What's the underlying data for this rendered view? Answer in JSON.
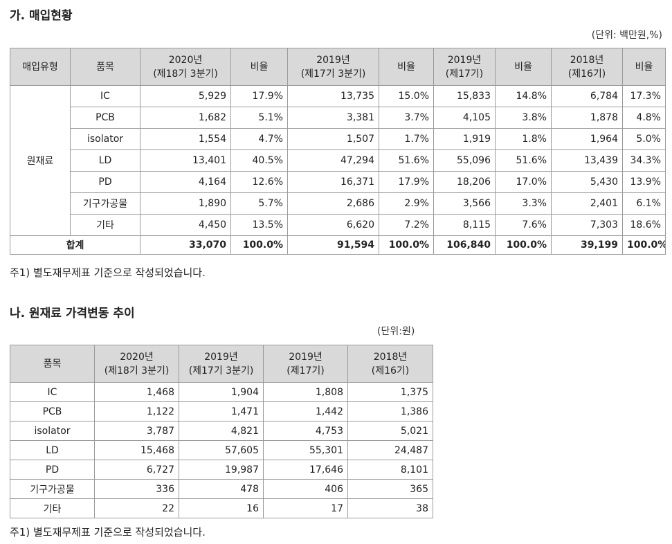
{
  "section1": {
    "title": "가. 매입현황",
    "unit": "(단위: 백만원,%)",
    "headers": [
      {
        "line1": "매입유형",
        "line2": ""
      },
      {
        "line1": "품목",
        "line2": ""
      },
      {
        "line1": "2020년",
        "line2": "(제18기 3분기)"
      },
      {
        "line1": "비율",
        "line2": ""
      },
      {
        "line1": "2019년",
        "line2": "(제17기 3분기)"
      },
      {
        "line1": "비율",
        "line2": ""
      },
      {
        "line1": "2019년",
        "line2": "(제17기)"
      },
      {
        "line1": "비율",
        "line2": ""
      },
      {
        "line1": "2018년",
        "line2": "(제16기)"
      },
      {
        "line1": "비율",
        "line2": ""
      }
    ],
    "group_label": "원재료",
    "rows": [
      {
        "item": "IC",
        "v": [
          "5,929",
          "17.9%",
          "13,735",
          "15.0%",
          "15,833",
          "14.8%",
          "6,784",
          "17.3%"
        ]
      },
      {
        "item": "PCB",
        "v": [
          "1,682",
          "5.1%",
          "3,381",
          "3.7%",
          "4,105",
          "3.8%",
          "1,878",
          "4.8%"
        ]
      },
      {
        "item": "isolator",
        "v": [
          "1,554",
          "4.7%",
          "1,507",
          "1.7%",
          "1,919",
          "1.8%",
          "1,964",
          "5.0%"
        ]
      },
      {
        "item": "LD",
        "v": [
          "13,401",
          "40.5%",
          "47,294",
          "51.6%",
          "55,096",
          "51.6%",
          "13,439",
          "34.3%"
        ]
      },
      {
        "item": "PD",
        "v": [
          "4,164",
          "12.6%",
          "16,371",
          "17.9%",
          "18,206",
          "17.0%",
          "5,430",
          "13.9%"
        ]
      },
      {
        "item": "기구가공물",
        "v": [
          "1,890",
          "5.7%",
          "2,686",
          "2.9%",
          "3,566",
          "3.3%",
          "2,401",
          "6.1%"
        ]
      },
      {
        "item": "기타",
        "v": [
          "4,450",
          "13.5%",
          "6,620",
          "7.2%",
          "8,115",
          "7.6%",
          "7,303",
          "18.6%"
        ]
      }
    ],
    "total": {
      "label": "합계",
      "v": [
        "33,070",
        "100.0%",
        "91,594",
        "100.0%",
        "106,840",
        "100.0%",
        "39,199",
        "100.0%"
      ]
    },
    "note": "주1) 별도재무제표 기준으로 작성되었습니다."
  },
  "section2": {
    "title": "나. 원재료 가격변동 추이",
    "unit": "(단위:원)",
    "headers": [
      {
        "line1": "품목",
        "line2": ""
      },
      {
        "line1": "2020년",
        "line2": "(제18기 3분기)"
      },
      {
        "line1": "2019년",
        "line2": "(제17기 3분기)"
      },
      {
        "line1": "2019년",
        "line2": "(제17기)"
      },
      {
        "line1": "2018년",
        "line2": "(제16기)"
      }
    ],
    "rows": [
      {
        "item": "IC",
        "v": [
          "1,468",
          "1,904",
          "1,808",
          "1,375"
        ]
      },
      {
        "item": "PCB",
        "v": [
          "1,122",
          "1,471",
          "1,442",
          "1,386"
        ]
      },
      {
        "item": "isolator",
        "v": [
          "3,787",
          "4,821",
          "4,753",
          "5,021"
        ]
      },
      {
        "item": "LD",
        "v": [
          "15,468",
          "57,605",
          "55,301",
          "24,487"
        ]
      },
      {
        "item": "PD",
        "v": [
          "6,727",
          "19,987",
          "17,646",
          "8,101"
        ]
      },
      {
        "item": "기구가공물",
        "v": [
          "336",
          "478",
          "406",
          "365"
        ]
      },
      {
        "item": "기타",
        "v": [
          "22",
          "16",
          "17",
          "38"
        ]
      }
    ],
    "note": "주1) 별도재무제표 기준으로 작성되었습니다."
  }
}
